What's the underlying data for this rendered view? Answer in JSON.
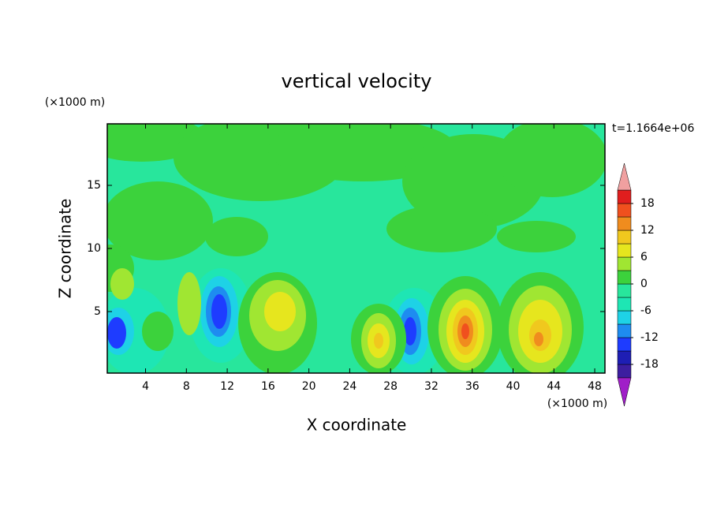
{
  "chart_data": {
    "type": "contour",
    "title": "vertical velocity",
    "xlabel": "X coordinate",
    "ylabel": "Z coordinate",
    "x_unit": "(×1000 m)",
    "y_unit": "(×1000 m)",
    "annotation": "t=1.1664e+06",
    "xlim": [
      0.25,
      49
    ],
    "ylim": [
      0.125,
      19.875
    ],
    "xticks": [
      4,
      8,
      12,
      16,
      20,
      24,
      28,
      32,
      36,
      40,
      44,
      48
    ],
    "yticks": [
      5,
      10,
      15
    ],
    "colorbar": {
      "lim": [
        -21,
        21
      ],
      "ticks": [
        -18,
        -12,
        -6,
        0,
        6,
        12,
        18
      ],
      "colors": [
        "#3c1ea0",
        "#1e1eb4",
        "#1e3cff",
        "#1e8cf0",
        "#1ed2e6",
        "#1ee6b4",
        "#28e69c",
        "#3cd23c",
        "#a0e632",
        "#e6e61e",
        "#f0c81e",
        "#f08c1e",
        "#f0501e",
        "#e01e1e"
      ],
      "under_color": "#a01ec8",
      "over_color": "#f0a0a0"
    }
  }
}
